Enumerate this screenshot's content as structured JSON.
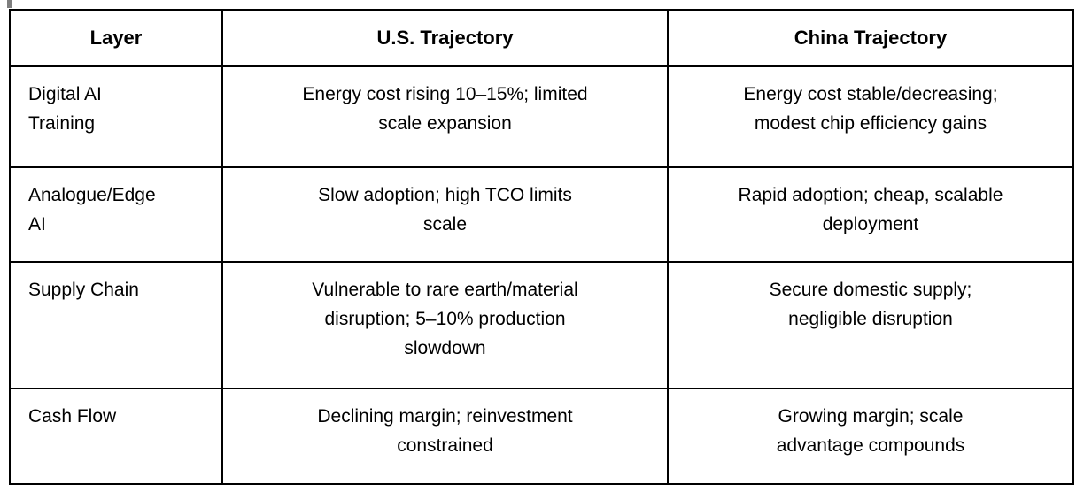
{
  "page": {
    "background": "#ffffff",
    "border_color": "#000000",
    "text_color": "#000000",
    "caret_color": "#7f7f7f"
  },
  "table": {
    "headers": [
      "Layer",
      "U.S. Trajectory",
      "China Trajectory"
    ],
    "rows": [
      {
        "layer": "Digital AI\nTraining",
        "us": "Energy cost rising 10–15%; limited\nscale expansion",
        "china": "Energy cost stable/decreasing;\nmodest chip efficiency gains"
      },
      {
        "layer": "Analogue/Edge\nAI",
        "us": "Slow adoption; high TCO limits\nscale",
        "china": "Rapid adoption; cheap, scalable\ndeployment"
      },
      {
        "layer": "Supply Chain",
        "us": "Vulnerable to rare earth/material\ndisruption; 5–10% production\nslowdown",
        "china": "Secure domestic supply;\nnegligible disruption"
      },
      {
        "layer": "Cash Flow",
        "us": "Declining margin; reinvestment\nconstrained",
        "china": "Growing margin; scale\nadvantage compounds"
      }
    ]
  }
}
